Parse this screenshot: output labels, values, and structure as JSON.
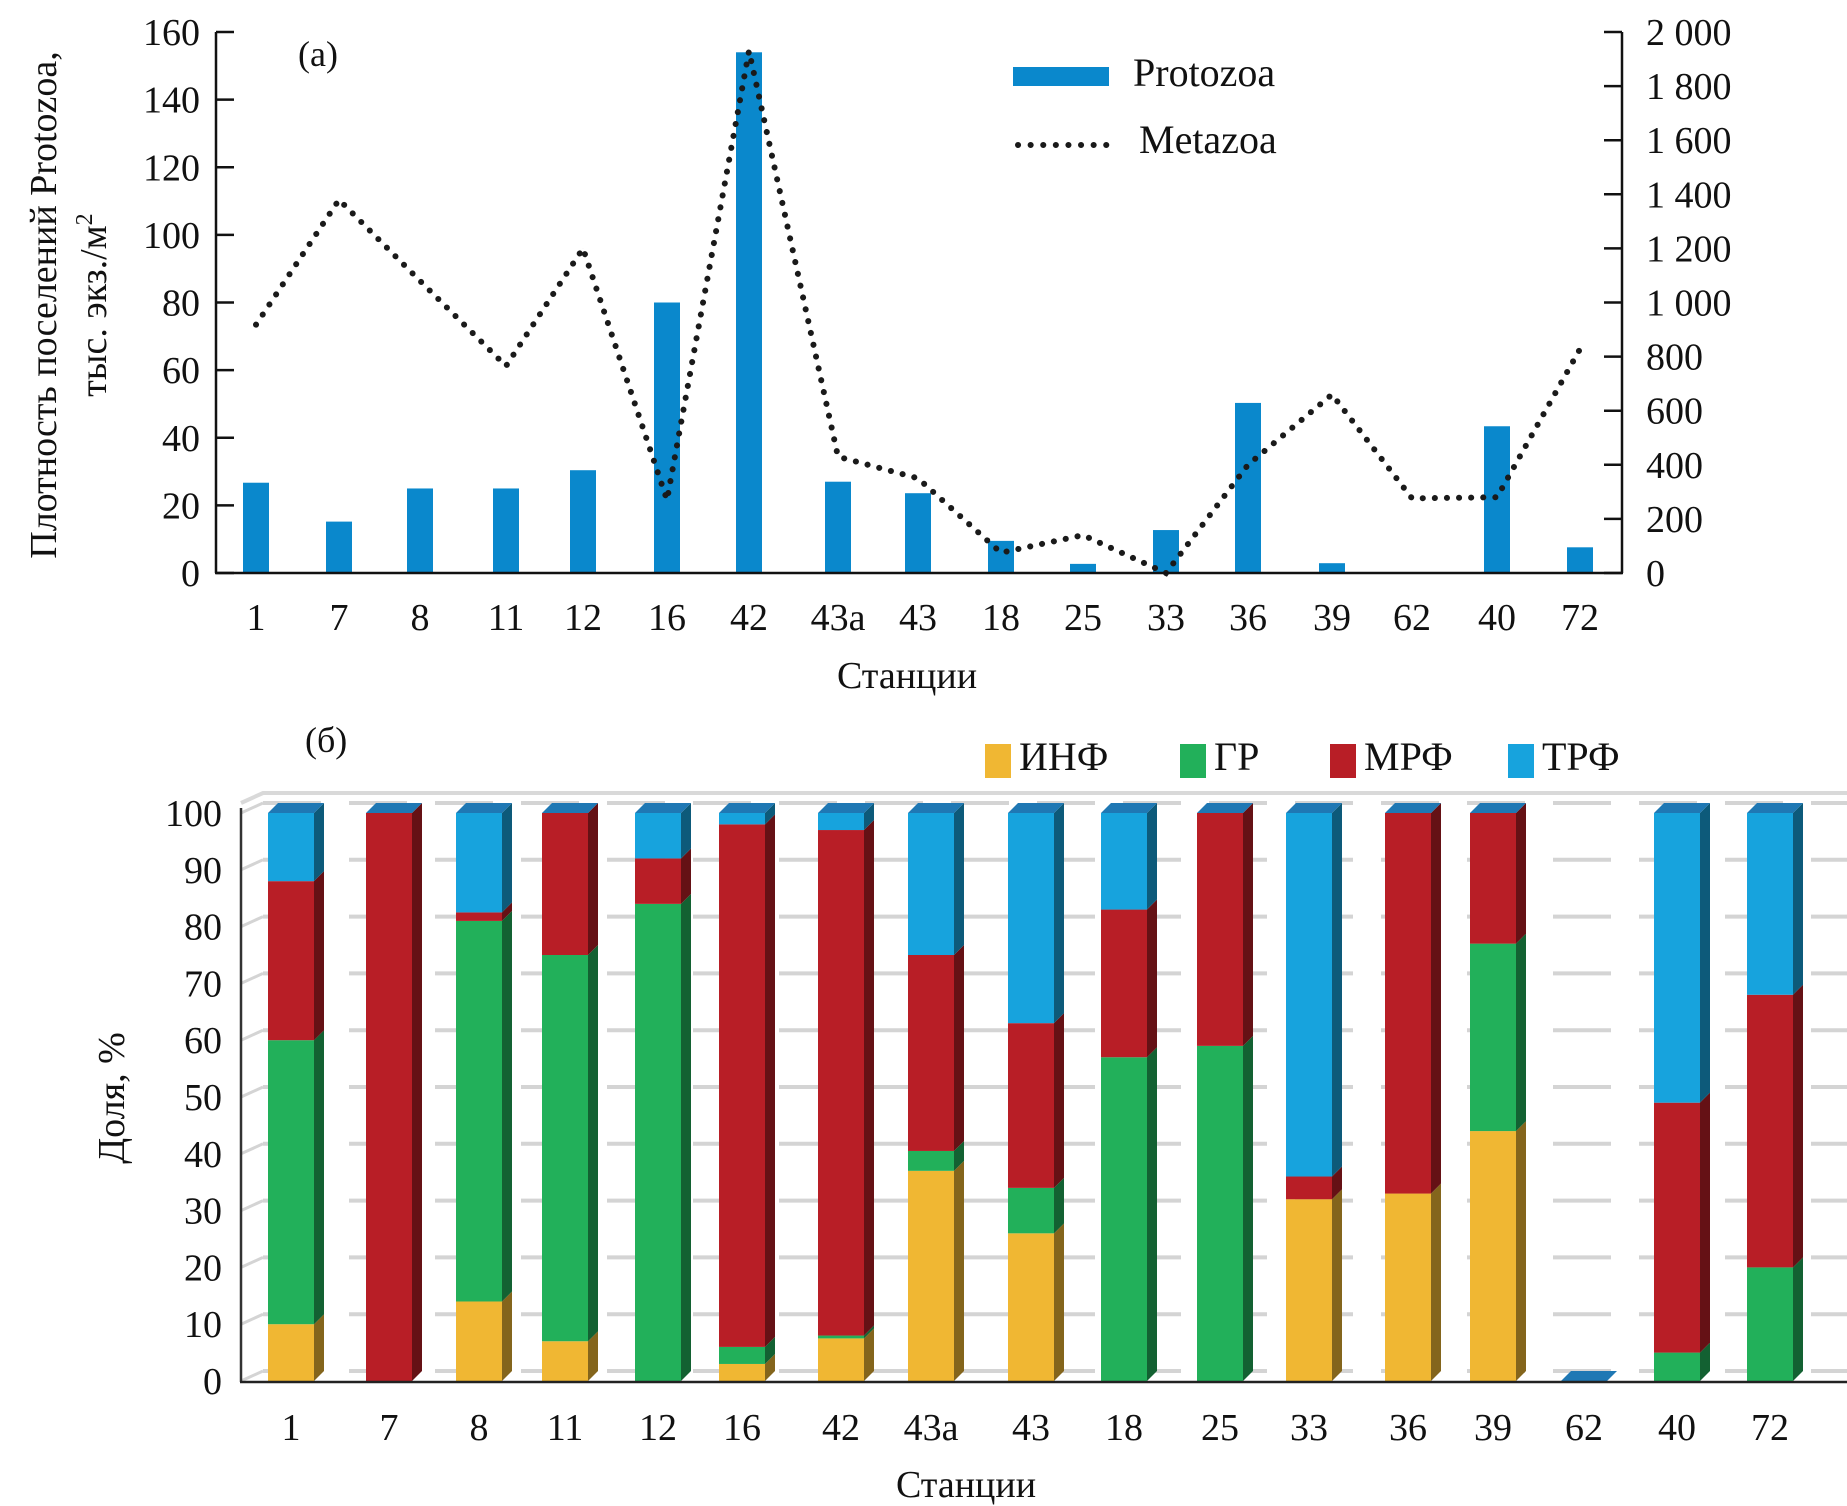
{
  "chart_data": [
    {
      "id": "a",
      "type": "bar",
      "panel_label": "(a)",
      "title": "",
      "xlabel": "Станции",
      "ylabel_line1": "Плотность поселений Protozoa,",
      "ylabel_line2": "тыс. экз./м",
      "ylabel_sup": "2",
      "categories": [
        "1",
        "7",
        "8",
        "11",
        "12",
        "16",
        "42",
        "43а",
        "43",
        "18",
        "25",
        "33",
        "36",
        "39",
        "62",
        "40",
        "72"
      ],
      "ylim": [
        0,
        160
      ],
      "yticks": [
        0,
        20,
        40,
        60,
        80,
        100,
        120,
        140,
        160
      ],
      "y2lim": [
        0,
        2000
      ],
      "y2ticks": [
        "0",
        "200",
        "400",
        "600",
        "800",
        "1 000",
        "1 200",
        "1 400",
        "1 600",
        "1 800",
        "2 000"
      ],
      "y2tick_values": [
        0,
        200,
        400,
        600,
        800,
        1000,
        1200,
        1400,
        1600,
        1800,
        2000
      ],
      "grid": false,
      "legend_position": "top-right",
      "series": [
        {
          "name": "Protozoa",
          "type": "bar",
          "axis": "left",
          "color": "#0a88cc",
          "values": [
            26.7,
            15.2,
            25,
            25,
            30.4,
            80,
            154,
            27,
            23.6,
            9.5,
            2.7,
            12.7,
            50.3,
            2.9,
            0,
            43.4,
            7.6
          ]
        },
        {
          "name": "Metazoa",
          "type": "line",
          "style": "dotted",
          "axis": "right",
          "color": "#1a1a1a",
          "values": [
            918,
            1380,
            1080,
            765,
            1200,
            270,
            1930,
            430,
            350,
            75,
            140,
            0,
            400,
            660,
            276,
            280,
            828
          ]
        }
      ]
    },
    {
      "id": "b",
      "type": "bar",
      "stacked": true,
      "panel_label": "(б)",
      "title": "",
      "xlabel": "Станции",
      "ylabel": "Доля, %",
      "categories": [
        "1",
        "7",
        "8",
        "11",
        "12",
        "16",
        "42",
        "43а",
        "43",
        "18",
        "25",
        "33",
        "36",
        "39",
        "62",
        "40",
        "72"
      ],
      "ylim": [
        0,
        100
      ],
      "yticks": [
        0,
        10,
        20,
        30,
        40,
        50,
        60,
        70,
        80,
        90,
        100
      ],
      "grid": true,
      "legend_position": "top-right",
      "series": [
        {
          "name": "ИНФ",
          "color": "#f0b733",
          "values": [
            10,
            0,
            14,
            7,
            0,
            3,
            7.5,
            37,
            26,
            0,
            0,
            32,
            33,
            44,
            0,
            0,
            0
          ]
        },
        {
          "name": "ГР",
          "color": "#22b05a",
          "values": [
            50,
            0,
            67,
            68,
            84,
            3,
            0.5,
            3.5,
            8,
            57,
            59,
            0,
            0,
            33,
            0,
            5,
            20
          ]
        },
        {
          "name": "МРФ",
          "color": "#b81e26",
          "values": [
            28,
            100,
            1.5,
            25,
            8,
            92,
            89,
            34.5,
            29,
            26,
            41,
            4,
            67,
            23,
            0,
            44,
            48
          ]
        },
        {
          "name": "ТРФ",
          "color": "#17a3dd",
          "values": [
            12,
            0,
            17.5,
            0,
            8,
            2,
            3,
            25,
            37,
            17,
            0,
            64,
            0,
            0,
            0,
            51,
            32
          ]
        }
      ]
    }
  ]
}
